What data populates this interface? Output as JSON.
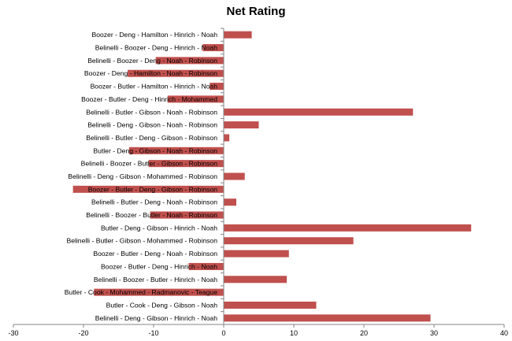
{
  "chart_data": {
    "type": "bar",
    "orientation": "horizontal",
    "title": "Net Rating",
    "xlabel": "",
    "ylabel": "",
    "xlim": [
      -30,
      40
    ],
    "x_ticks": [
      "-30",
      "-20",
      "-10",
      "0",
      "10",
      "20",
      "30",
      "40"
    ],
    "grid": false,
    "legend": "none",
    "bar_color": "#c0504d",
    "categories": [
      "Boozer - Deng - Hamilton - Hinrich - Noah",
      "Belinelli - Boozer - Deng - Hinrich - Noah",
      "Belinelli - Boozer - Deng - Noah - Robinson",
      "Boozer - Deng - Hamilton - Noah - Robinson",
      "Boozer - Butler - Hamilton - Hinrich - Noah",
      "Boozer - Butler - Deng - Hinrich - Mohammed",
      "Belinelli - Butler - Gibson - Noah - Robinson",
      "Belinelli - Deng - Gibson - Noah - Robinson",
      "Belinelli - Butler - Deng - Gibson - Robinson",
      "Butler - Deng - Gibson - Noah - Robinson",
      "Belinelli - Boozer - Butler - Gibson - Robinson",
      "Belinelli - Deng - Gibson - Mohammed - Robinson",
      "Boozer - Butler - Deng - Gibson - Robinson",
      "Belinelli - Butler - Deng - Noah - Robinson",
      "Belinelli - Boozer - Butler - Noah - Robinson",
      "Butler - Deng - Gibson - Hinrich - Noah",
      "Belinelli - Butler - Gibson - Mohammed - Robinson",
      "Boozer - Butler - Deng - Noah - Robinson",
      "Boozer - Butler - Deng - Hinrich - Noah",
      "Belinelli - Boozer - Butler - Hinrich - Noah",
      "Butler - Cook - Mohammed - Radmanovic - Teague",
      "Butler - Cook - Deng - Gibson - Noah",
      "Belinelli - Deng - Gibson - Hinrich - Noah"
    ],
    "values": [
      4,
      -3,
      -9.7,
      -13.7,
      -2,
      -8,
      27,
      5,
      0.8,
      -13.5,
      -10.7,
      3,
      -21.5,
      1.8,
      -10.5,
      35.3,
      18.5,
      9.3,
      -5,
      9,
      -18.5,
      13.2,
      29.5
    ]
  }
}
